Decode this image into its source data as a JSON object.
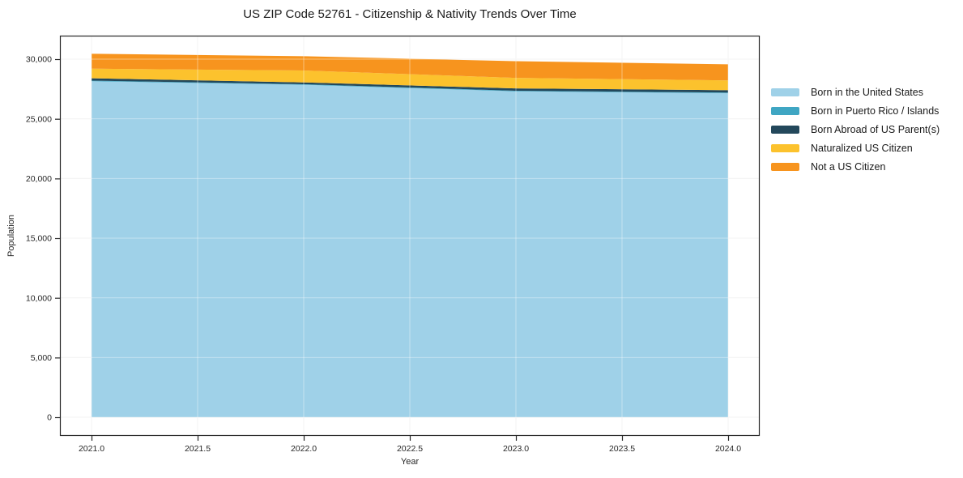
{
  "chart_data": {
    "type": "area",
    "stacked": true,
    "title": "US ZIP Code 52761 - Citizenship & Nativity Trends Over Time",
    "xlabel": "Year",
    "ylabel": "Population",
    "x": [
      2021,
      2022,
      2023,
      2024
    ],
    "series": [
      {
        "name": "Born in the United States",
        "color": "#9FD1E8",
        "values": [
          28150,
          27850,
          27300,
          27150
        ]
      },
      {
        "name": "Born in Puerto Rico / Islands",
        "color": "#3FA6C3",
        "values": [
          50,
          50,
          50,
          50
        ]
      },
      {
        "name": "Born Abroad of US Parent(s)",
        "color": "#23485B",
        "values": [
          200,
          150,
          200,
          200
        ]
      },
      {
        "name": "Naturalized US Citizen",
        "color": "#FCC22D",
        "values": [
          800,
          1000,
          880,
          820
        ]
      },
      {
        "name": "Not a US Citizen",
        "color": "#F7941E",
        "values": [
          1250,
          1200,
          1400,
          1350
        ]
      }
    ],
    "totals": [
      30450,
      30250,
      29830,
      29520
    ],
    "xticks": {
      "values": [
        2021.0,
        2021.5,
        2022.0,
        2022.5,
        2023.0,
        2023.5,
        2024.0
      ],
      "labels": [
        "2021.0",
        "2021.5",
        "2022.0",
        "2022.5",
        "2023.0",
        "2023.5",
        "2024.0"
      ]
    },
    "yticks": {
      "values": [
        0,
        5000,
        10000,
        15000,
        20000,
        25000,
        30000
      ],
      "labels": [
        "0",
        "5,000",
        "10,000",
        "15,000",
        "20,000",
        "25,000",
        "30,000"
      ]
    },
    "xlim": [
      2021,
      2024
    ],
    "ylim": [
      0,
      30000
    ],
    "grid": true,
    "legend_position": "right"
  },
  "colors": {
    "background": "#ffffff",
    "spine": "#262626",
    "tick_label": "#262626",
    "grid_under": "#ececec",
    "grid_over": "rgba(255,255,255,0.40)"
  }
}
